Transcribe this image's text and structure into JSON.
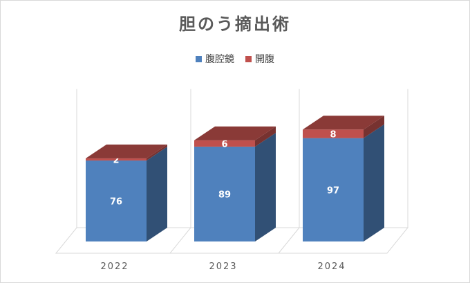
{
  "chart_data": {
    "type": "bar",
    "stacked": true,
    "three_d": true,
    "title": "胆のう摘出術",
    "categories": [
      "2022",
      "2023",
      "2024"
    ],
    "series": [
      {
        "name": "腹腔鏡",
        "values": [
          76,
          89,
          97
        ],
        "color": "#4f81bd"
      },
      {
        "name": "開腹",
        "values": [
          2,
          6,
          8
        ],
        "color": "#c0504d"
      }
    ],
    "ylim": [
      0,
      130
    ],
    "legend_position": "top",
    "grid": true
  }
}
